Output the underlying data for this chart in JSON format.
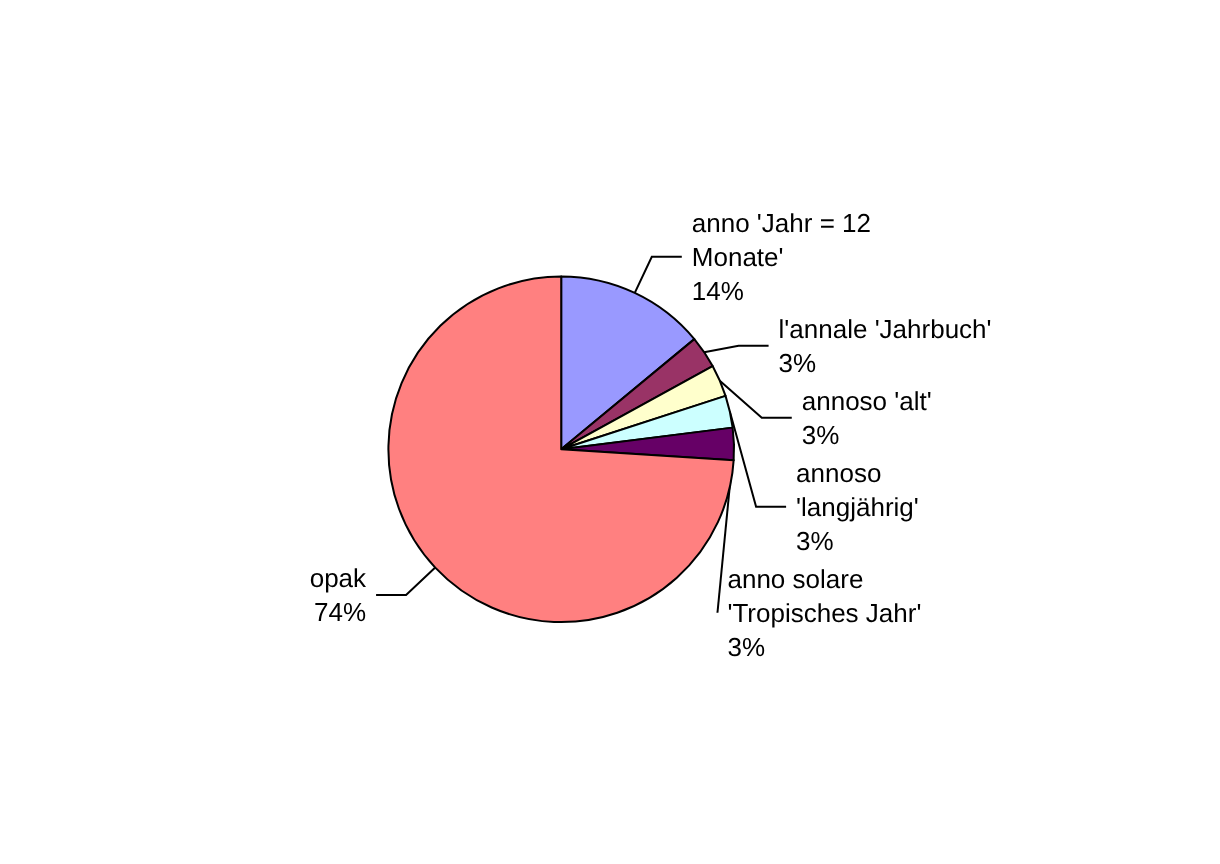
{
  "chart_data": {
    "type": "pie",
    "categories": [
      "anno 'Jahr = 12 Monate'",
      "l'annale 'Jahrbuch'",
      "annoso 'alt'",
      "annoso 'langjährig'",
      "anno solare 'Tropisches Jahr'",
      "opak"
    ],
    "values": [
      14,
      3,
      3,
      3,
      3,
      74
    ],
    "value_labels": [
      "14%",
      "3%",
      "3%",
      "3%",
      "3%",
      "74%"
    ],
    "colors": [
      "#9999ff",
      "#993366",
      "#ffffcc",
      "#ccffff",
      "#660066",
      "#ff8080"
    ],
    "legend": false
  }
}
